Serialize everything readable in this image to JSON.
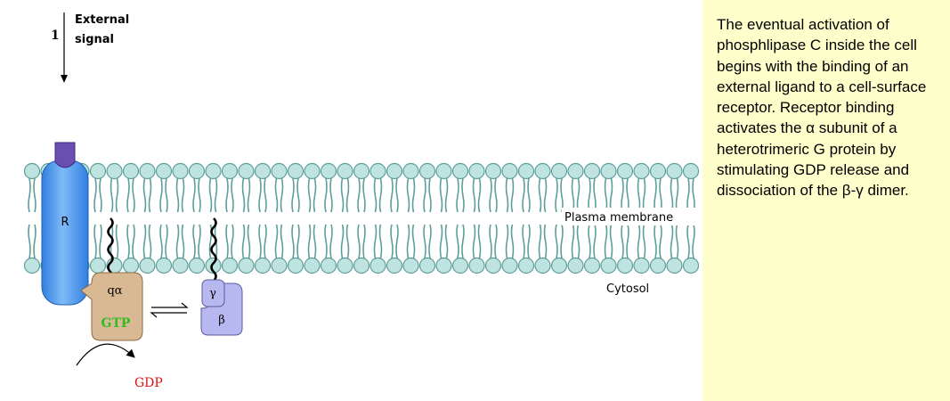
{
  "step": {
    "number": "1",
    "label_line1": "External",
    "label_line2": "signal"
  },
  "labels": {
    "receptor": "R",
    "alpha": "qα",
    "gtp": "GTP",
    "gamma": "γ",
    "beta": "β",
    "gdp": "GDP",
    "plasma_membrane": "Plasma membrane",
    "cytosol": "Cytosol"
  },
  "colors": {
    "lipid_head": "#bfe3e1",
    "lipid_tail": "#5e9e9a",
    "receptor": "#3f8fe8",
    "receptor_cap": "#6a4fb0",
    "alpha_subunit": "#d9b994",
    "beta_gamma": "#b8b8f0",
    "gtp_text": "#33bb22",
    "gdp_text": "#dd1111",
    "caption_bg": "#ffffcc"
  },
  "caption": {
    "text": "The eventual activation of phosphlipase C inside the cell begins with the binding of an external ligand to a cell-surface receptor. Receptor binding activates the α subunit of a heterotrimeric G  protein by stimulating GDP release and dissociation of the β-γ dimer."
  }
}
